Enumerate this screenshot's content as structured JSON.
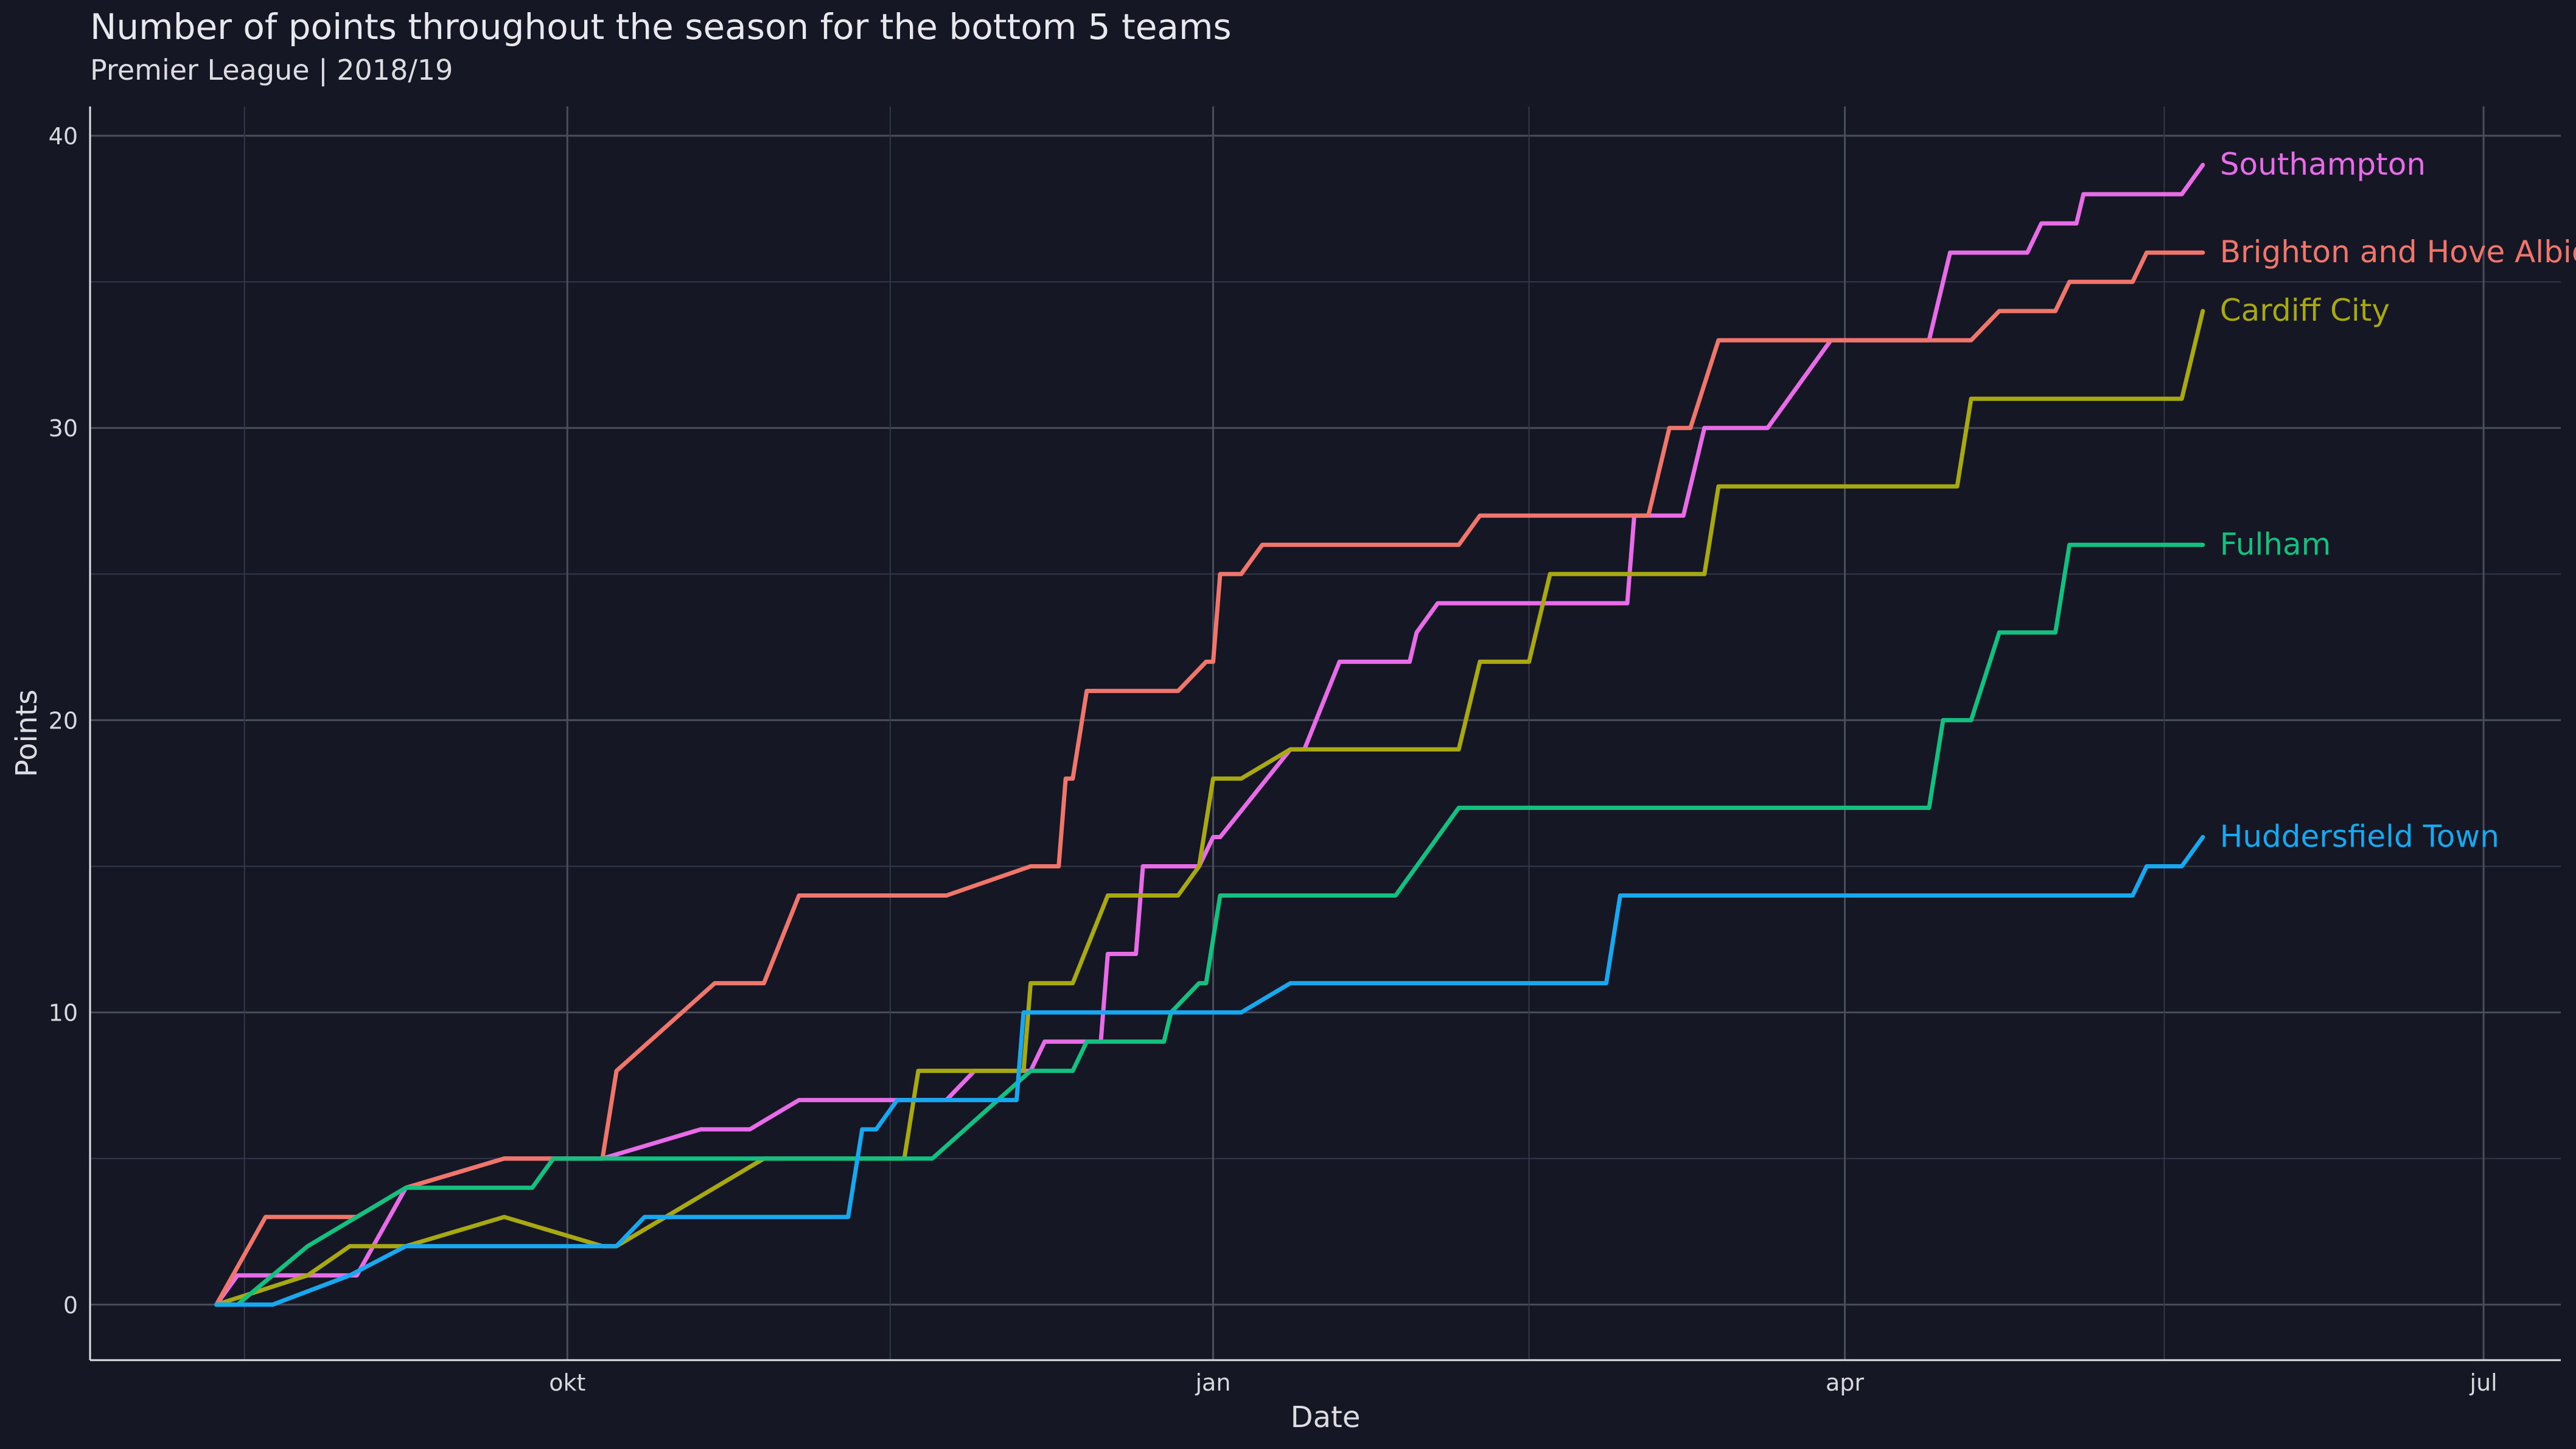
{
  "chart_data": {
    "type": "line",
    "title": "Number of points throughout the season for the bottom 5 teams",
    "subtitle": "Premier League | 2018/19",
    "xlabel": "Date",
    "ylabel": "Points",
    "x_ticks": [
      {
        "label": "okt",
        "date": "2018-10-01"
      },
      {
        "label": "jan",
        "date": "2019-01-01"
      },
      {
        "label": "apr",
        "date": "2019-04-01"
      },
      {
        "label": "jul",
        "date": "2019-07-01"
      }
    ],
    "y_ticks": [
      0,
      10,
      20,
      30,
      40
    ],
    "xlim": [
      "2018-07-25",
      "2019-07-12"
    ],
    "ylim": [
      -1.9,
      41
    ],
    "grid": true,
    "legend": "direct labels at line ends",
    "series": [
      {
        "name": "Southampton",
        "color": "#e86ce8",
        "points": [
          [
            "2018-08-12",
            0
          ],
          [
            "2018-08-15",
            1
          ],
          [
            "2018-08-29",
            1
          ],
          [
            "2018-09-01",
            1
          ],
          [
            "2018-09-08",
            4
          ],
          [
            "2018-09-22",
            5
          ],
          [
            "2018-09-29",
            5
          ],
          [
            "2018-10-06",
            5
          ],
          [
            "2018-10-20",
            6
          ],
          [
            "2018-10-27",
            6
          ],
          [
            "2018-11-03",
            7
          ],
          [
            "2018-11-10",
            7
          ],
          [
            "2018-11-24",
            7
          ],
          [
            "2018-11-28",
            8
          ],
          [
            "2018-12-01",
            8
          ],
          [
            "2018-12-06",
            8
          ],
          [
            "2018-12-08",
            9
          ],
          [
            "2018-12-13",
            9
          ],
          [
            "2018-12-16",
            9
          ],
          [
            "2018-12-17",
            12
          ],
          [
            "2018-12-21",
            12
          ],
          [
            "2018-12-22",
            15
          ],
          [
            "2018-12-27",
            15
          ],
          [
            "2018-12-30",
            15
          ],
          [
            "2019-01-01",
            16
          ],
          [
            "2019-01-02",
            16
          ],
          [
            "2019-01-12",
            19
          ],
          [
            "2019-01-14",
            19
          ],
          [
            "2019-01-19",
            22
          ],
          [
            "2019-01-29",
            22
          ],
          [
            "2019-01-30",
            23
          ],
          [
            "2019-02-02",
            24
          ],
          [
            "2019-02-09",
            24
          ],
          [
            "2019-02-23",
            24
          ],
          [
            "2019-03-01",
            24
          ],
          [
            "2019-03-02",
            27
          ],
          [
            "2019-03-09",
            27
          ],
          [
            "2019-03-12",
            30
          ],
          [
            "2019-03-21",
            30
          ],
          [
            "2019-03-30",
            33
          ],
          [
            "2019-04-05",
            33
          ],
          [
            "2019-04-13",
            33
          ],
          [
            "2019-04-16",
            36
          ],
          [
            "2019-04-27",
            36
          ],
          [
            "2019-04-29",
            37
          ],
          [
            "2019-05-04",
            37
          ],
          [
            "2019-05-05",
            38
          ],
          [
            "2019-05-19",
            38
          ],
          [
            "2019-05-22",
            39
          ]
        ]
      },
      {
        "name": "Brighton and Hove Albion",
        "color": "#f0766c",
        "points": [
          [
            "2018-08-12",
            0
          ],
          [
            "2018-08-19",
            3
          ],
          [
            "2018-08-31",
            3
          ],
          [
            "2018-09-01",
            3
          ],
          [
            "2018-09-08",
            4
          ],
          [
            "2018-09-22",
            5
          ],
          [
            "2018-09-29",
            5
          ],
          [
            "2018-10-06",
            5
          ],
          [
            "2018-10-08",
            8
          ],
          [
            "2018-10-22",
            11
          ],
          [
            "2018-10-29",
            11
          ],
          [
            "2018-11-03",
            14
          ],
          [
            "2018-11-10",
            14
          ],
          [
            "2018-11-24",
            14
          ],
          [
            "2018-12-06",
            15
          ],
          [
            "2018-12-08",
            15
          ],
          [
            "2018-12-10",
            15
          ],
          [
            "2018-12-11",
            18
          ],
          [
            "2018-12-12",
            18
          ],
          [
            "2018-12-14",
            21
          ],
          [
            "2018-12-21",
            21
          ],
          [
            "2018-12-27",
            21
          ],
          [
            "2018-12-31",
            22
          ],
          [
            "2019-01-01",
            22
          ],
          [
            "2019-01-02",
            25
          ],
          [
            "2019-01-05",
            25
          ],
          [
            "2019-01-08",
            26
          ],
          [
            "2019-01-29",
            26
          ],
          [
            "2019-02-05",
            26
          ],
          [
            "2019-02-08",
            27
          ],
          [
            "2019-02-23",
            27
          ],
          [
            "2019-03-01",
            27
          ],
          [
            "2019-03-04",
            27
          ],
          [
            "2019-03-07",
            30
          ],
          [
            "2019-03-10",
            30
          ],
          [
            "2019-03-14",
            33
          ],
          [
            "2019-03-30",
            33
          ],
          [
            "2019-04-13",
            33
          ],
          [
            "2019-04-19",
            33
          ],
          [
            "2019-04-23",
            34
          ],
          [
            "2019-05-01",
            34
          ],
          [
            "2019-05-03",
            35
          ],
          [
            "2019-05-12",
            35
          ],
          [
            "2019-05-14",
            36
          ],
          [
            "2019-05-22",
            36
          ]
        ]
      },
      {
        "name": "Cardiff City",
        "color": "#a8a812",
        "points": [
          [
            "2018-08-12",
            0
          ],
          [
            "2018-08-25",
            1
          ],
          [
            "2018-08-31",
            2
          ],
          [
            "2018-09-08",
            2
          ],
          [
            "2018-09-22",
            3
          ],
          [
            "2018-10-06",
            2
          ],
          [
            "2018-10-08",
            2
          ],
          [
            "2018-10-29",
            5
          ],
          [
            "2018-11-10",
            5
          ],
          [
            "2018-11-18",
            5
          ],
          [
            "2018-11-20",
            8
          ],
          [
            "2018-12-01",
            8
          ],
          [
            "2018-12-05",
            8
          ],
          [
            "2018-12-06",
            11
          ],
          [
            "2018-12-12",
            11
          ],
          [
            "2018-12-17",
            14
          ],
          [
            "2018-12-27",
            14
          ],
          [
            "2018-12-30",
            15
          ],
          [
            "2019-01-01",
            18
          ],
          [
            "2019-01-05",
            18
          ],
          [
            "2019-01-12",
            19
          ],
          [
            "2019-01-29",
            19
          ],
          [
            "2019-02-05",
            19
          ],
          [
            "2019-02-08",
            22
          ],
          [
            "2019-02-15",
            22
          ],
          [
            "2019-02-18",
            25
          ],
          [
            "2019-03-01",
            25
          ],
          [
            "2019-03-12",
            25
          ],
          [
            "2019-03-14",
            28
          ],
          [
            "2019-04-10",
            28
          ],
          [
            "2019-04-17",
            28
          ],
          [
            "2019-04-19",
            31
          ],
          [
            "2019-05-01",
            31
          ],
          [
            "2019-05-19",
            31
          ],
          [
            "2019-05-22",
            34
          ]
        ]
      },
      {
        "name": "Fulham",
        "color": "#14c080",
        "points": [
          [
            "2018-08-12",
            0
          ],
          [
            "2018-08-15",
            0
          ],
          [
            "2018-08-25",
            2
          ],
          [
            "2018-09-01",
            3
          ],
          [
            "2018-09-08",
            4
          ],
          [
            "2018-09-22",
            4
          ],
          [
            "2018-09-26",
            4
          ],
          [
            "2018-09-29",
            5
          ],
          [
            "2018-10-06",
            5
          ],
          [
            "2018-10-08",
            5
          ],
          [
            "2018-10-22",
            5
          ],
          [
            "2018-11-10",
            5
          ],
          [
            "2018-11-18",
            5
          ],
          [
            "2018-11-22",
            5
          ],
          [
            "2018-12-06",
            8
          ],
          [
            "2018-12-12",
            8
          ],
          [
            "2018-12-14",
            9
          ],
          [
            "2018-12-21",
            9
          ],
          [
            "2018-12-25",
            9
          ],
          [
            "2018-12-26",
            10
          ],
          [
            "2018-12-30",
            11
          ],
          [
            "2018-12-31",
            11
          ],
          [
            "2019-01-02",
            14
          ],
          [
            "2019-01-12",
            14
          ],
          [
            "2019-01-27",
            14
          ],
          [
            "2019-02-05",
            17
          ],
          [
            "2019-02-12",
            17
          ],
          [
            "2019-02-23",
            17
          ],
          [
            "2019-03-15",
            17
          ],
          [
            "2019-04-05",
            17
          ],
          [
            "2019-04-13",
            17
          ],
          [
            "2019-04-15",
            20
          ],
          [
            "2019-04-19",
            20
          ],
          [
            "2019-04-23",
            23
          ],
          [
            "2019-05-01",
            23
          ],
          [
            "2019-05-03",
            26
          ],
          [
            "2019-05-22",
            26
          ]
        ]
      },
      {
        "name": "Huddersfield Town",
        "color": "#18a8f0",
        "points": [
          [
            "2018-08-12",
            0
          ],
          [
            "2018-08-20",
            0
          ],
          [
            "2018-08-31",
            1
          ],
          [
            "2018-09-08",
            2
          ],
          [
            "2018-09-22",
            2
          ],
          [
            "2018-10-05",
            2
          ],
          [
            "2018-10-08",
            2
          ],
          [
            "2018-10-12",
            3
          ],
          [
            "2018-10-29",
            3
          ],
          [
            "2018-11-10",
            3
          ],
          [
            "2018-11-12",
            6
          ],
          [
            "2018-11-14",
            6
          ],
          [
            "2018-11-17",
            7
          ],
          [
            "2018-12-01",
            7
          ],
          [
            "2018-12-04",
            7
          ],
          [
            "2018-12-05",
            10
          ],
          [
            "2018-12-15",
            10
          ],
          [
            "2018-12-25",
            10
          ],
          [
            "2019-01-02",
            10
          ],
          [
            "2019-01-05",
            10
          ],
          [
            "2019-01-12",
            11
          ],
          [
            "2019-01-27",
            11
          ],
          [
            "2019-02-10",
            11
          ],
          [
            "2019-02-25",
            11
          ],
          [
            "2019-02-26",
            11
          ],
          [
            "2019-02-28",
            14
          ],
          [
            "2019-03-15",
            14
          ],
          [
            "2019-04-05",
            14
          ],
          [
            "2019-04-20",
            14
          ],
          [
            "2019-05-12",
            14
          ],
          [
            "2019-05-14",
            15
          ],
          [
            "2019-05-19",
            15
          ],
          [
            "2019-05-22",
            16
          ]
        ]
      }
    ]
  }
}
